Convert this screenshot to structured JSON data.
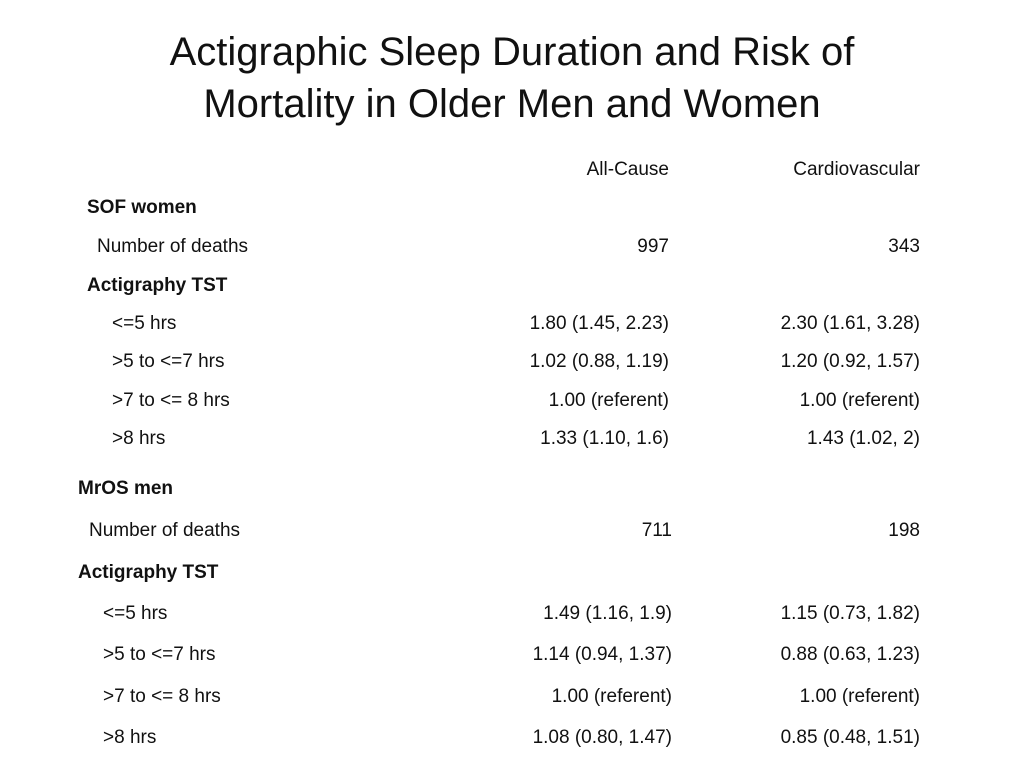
{
  "title": {
    "line1": "Actigraphic Sleep Duration and Risk of",
    "line2": "Mortality in Older Men and Women"
  },
  "columns": {
    "all_cause": "All-Cause",
    "cardiovascular": "Cardiovascular"
  },
  "sof": {
    "heading": "SOF women",
    "deaths_label": "Number of deaths",
    "deaths_all_cause": "997",
    "deaths_cardiovascular": "343",
    "tst_heading": "Actigraphy TST",
    "rows": [
      {
        "label": "<=5 hrs",
        "all_cause": "1.80 (1.45, 2.23)",
        "cardiovascular": "2.30 (1.61, 3.28)"
      },
      {
        "label": ">5 to <=7 hrs",
        "all_cause": "1.02 (0.88, 1.19)",
        "cardiovascular": "1.20 (0.92, 1.57)"
      },
      {
        "label": ">7 to <= 8 hrs",
        "all_cause": "1.00 (referent)",
        "cardiovascular": "1.00 (referent)"
      },
      {
        "label": ">8 hrs",
        "all_cause": "1.33 (1.10, 1.6)",
        "cardiovascular": "1.43 (1.02, 2)"
      }
    ]
  },
  "mros": {
    "heading": "MrOS men",
    "deaths_label": "Number of deaths",
    "deaths_all_cause": "711",
    "deaths_cardiovascular": "198",
    "tst_heading": "Actigraphy TST",
    "rows": [
      {
        "label": "<=5 hrs",
        "all_cause": "1.49 (1.16, 1.9)",
        "cardiovascular": "1.15 (0.73, 1.82)"
      },
      {
        "label": ">5 to <=7 hrs",
        "all_cause": "1.14 (0.94, 1.37)",
        "cardiovascular": "0.88 (0.63, 1.23)"
      },
      {
        "label": ">7 to <= 8 hrs",
        "all_cause": "1.00 (referent)",
        "cardiovascular": "1.00 (referent)"
      },
      {
        "label": ">8 hrs",
        "all_cause": "1.08 (0.80, 1.47)",
        "cardiovascular": "0.85 (0.48, 1.51)"
      }
    ]
  }
}
